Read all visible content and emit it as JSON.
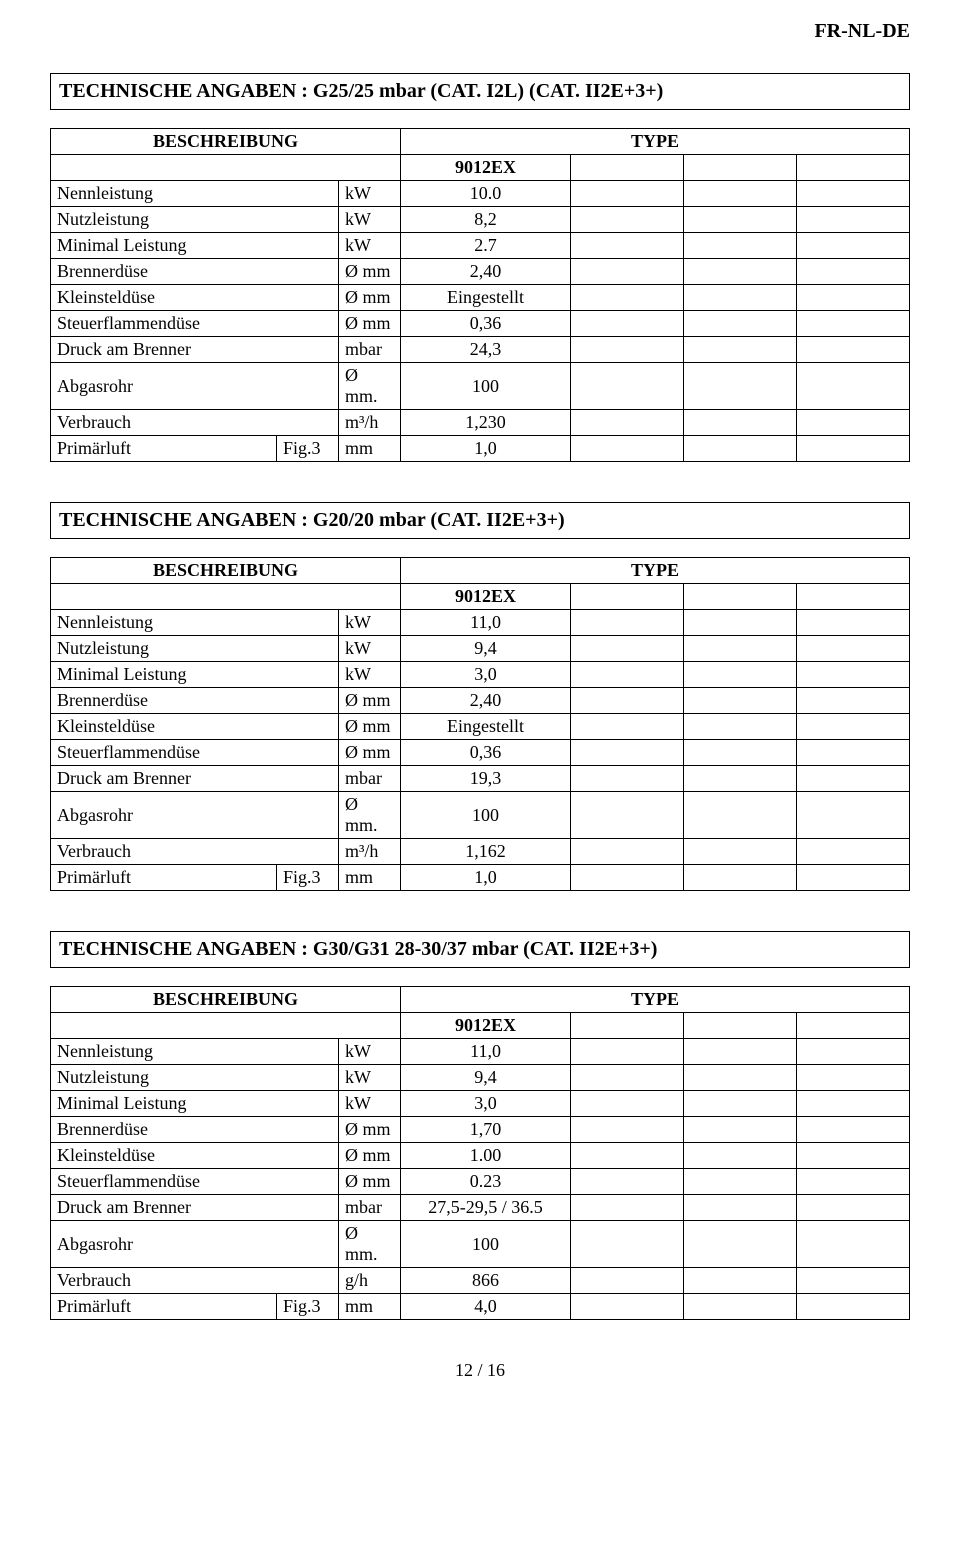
{
  "header": {
    "langs": "FR-NL-DE"
  },
  "tables": [
    {
      "title": "TECHNISCHE ANGABEN  : G25/25 mbar  (CAT.  I2L) (CAT.  II2E+3+)",
      "head": {
        "desc": "BESCHREIBUNG",
        "type": "TYPE",
        "model": "9012EX"
      },
      "rows": [
        {
          "label": "Nennleistung",
          "sub": "",
          "unit": "kW",
          "val": "10.0"
        },
        {
          "label": "Nutzleistung",
          "sub": "",
          "unit": "kW",
          "val": "8,2"
        },
        {
          "label": "Minimal Leistung",
          "sub": "",
          "unit": "kW",
          "val": "2.7"
        },
        {
          "label": "Brennerdüse",
          "sub": "",
          "unit": "Ø  mm",
          "val": "2,40"
        },
        {
          "label": "Kleinsteldüse",
          "sub": "",
          "unit": "Ø  mm",
          "val": "Eingestellt"
        },
        {
          "label": "Steuerflammendüse",
          "sub": "",
          "unit": "Ø  mm",
          "val": "0,36"
        },
        {
          "label": "Druck am Brenner",
          "sub": "",
          "unit": "mbar",
          "val": "24,3"
        },
        {
          "label": "Abgasrohr",
          "sub": "",
          "unit": "Ø  mm.",
          "val": "100"
        },
        {
          "label": "Verbrauch",
          "sub": "",
          "unit": "m³/h",
          "val": "1,230"
        },
        {
          "label": " Primärluft",
          "sub": "Fig.3",
          "unit": "mm",
          "val": "1,0"
        }
      ]
    },
    {
      "title": "TECHNISCHE ANGABEN  : G20/20 mbar  (CAT.  II2E+3+)",
      "head": {
        "desc": "BESCHREIBUNG",
        "type": "TYPE",
        "model": "9012EX"
      },
      "rows": [
        {
          "label": "Nennleistung",
          "sub": "",
          "unit": "kW",
          "val": "11,0"
        },
        {
          "label": "Nutzleistung",
          "sub": "",
          "unit": "kW",
          "val": "9,4"
        },
        {
          "label": "Minimal Leistung",
          "sub": "",
          "unit": "kW",
          "val": "3,0"
        },
        {
          "label": "Brennerdüse",
          "sub": "",
          "unit": "Ø  mm",
          "val": "2,40"
        },
        {
          "label": "Kleinsteldüse",
          "sub": "",
          "unit": "Ø  mm",
          "val": "Eingestellt"
        },
        {
          "label": "Steuerflammendüse",
          "sub": "",
          "unit": "Ø  mm",
          "val": "0,36"
        },
        {
          "label": "Druck am Brenner",
          "sub": "",
          "unit": "mbar",
          "val": "19,3"
        },
        {
          "label": "Abgasrohr",
          "sub": "",
          "unit": "Ø  mm.",
          "val": "100"
        },
        {
          "label": "Verbrauch",
          "sub": "",
          "unit": "m³/h",
          "val": "1,162"
        },
        {
          "label": "Primärluft",
          "sub": "Fig.3",
          "unit": "mm",
          "val": "1,0"
        }
      ]
    },
    {
      "title": "TECHNISCHE ANGABEN : G30/G31 28-30/37 mbar (CAT.  II2E+3+)",
      "head": {
        "desc": "BESCHREIBUNG",
        "type": "TYPE",
        "model": "9012EX"
      },
      "rows": [
        {
          "label": "Nennleistung",
          "sub": "",
          "unit": "kW",
          "val": "11,0"
        },
        {
          "label": "Nutzleistung",
          "sub": "",
          "unit": "kW",
          "val": "9,4"
        },
        {
          "label": "Minimal Leistung",
          "sub": "",
          "unit": "kW",
          "val": "3,0"
        },
        {
          "label": "Brennerdüse",
          "sub": "",
          "unit": "Ø  mm",
          "val": "1,70"
        },
        {
          "label": "Kleinsteldüse",
          "sub": "",
          "unit": "Ø  mm",
          "val": "1.00"
        },
        {
          "label": "Steuerflammendüse",
          "sub": "",
          "unit": "Ø  mm",
          "val": "0.23"
        },
        {
          "label": "Druck am Brenner",
          "sub": "",
          "unit": "mbar",
          "val": "27,5-29,5 / 36.5"
        },
        {
          "label": "Abgasrohr",
          "sub": "",
          "unit": "Ø  mm.",
          "val": "100"
        },
        {
          "label": "Verbrauch",
          "sub": "",
          "unit": "g/h",
          "val": "866"
        },
        {
          "label": "Primärluft",
          "sub": "Fig.3",
          "unit": "mm",
          "val": "4,0"
        }
      ]
    }
  ],
  "footer": {
    "page": "12 / 16"
  }
}
